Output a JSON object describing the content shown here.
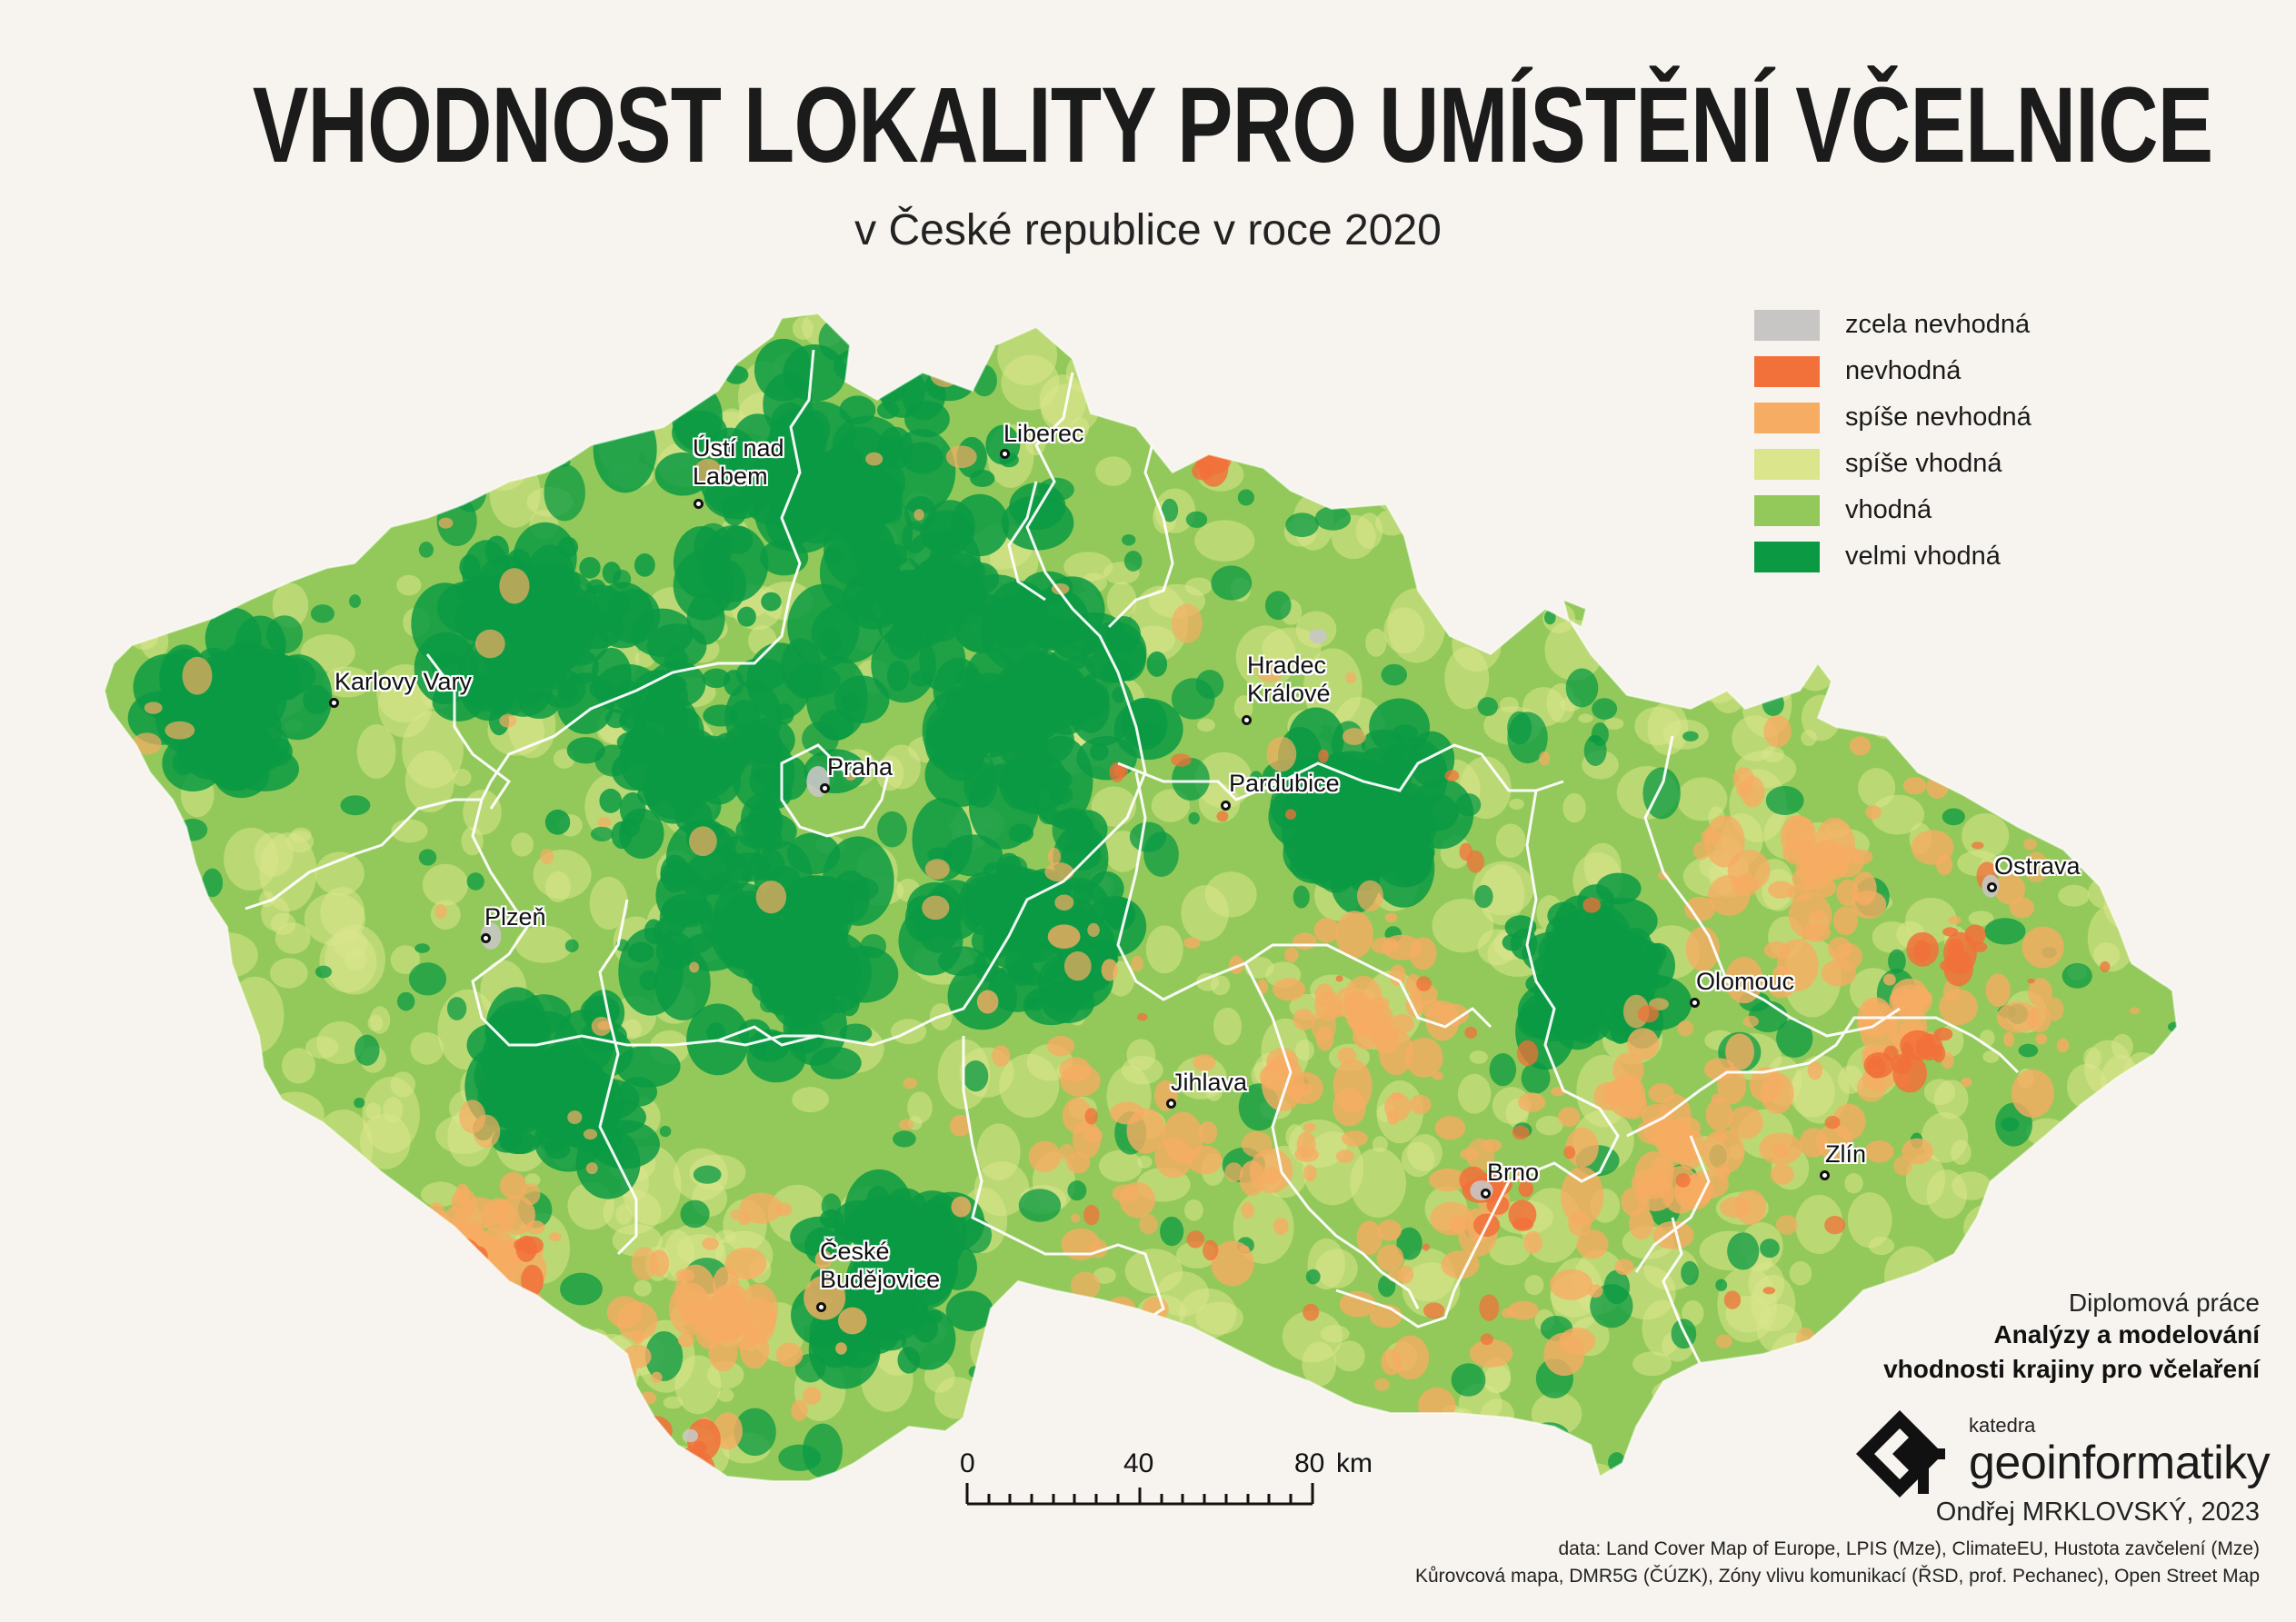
{
  "title": "VHODNOST LOKALITY PRO UMÍSTĚNÍ VČELNICE",
  "subtitle": "v České republice v roce 2020",
  "legend": [
    {
      "label": "zcela nevhodná",
      "color": "#c8c6c4"
    },
    {
      "label": "nevhodná",
      "color": "#f2703a"
    },
    {
      "label": "spíše nevhodná",
      "color": "#f6ad63"
    },
    {
      "label": "spíše vhodná",
      "color": "#dbe58c"
    },
    {
      "label": "vhodná",
      "color": "#93c95a"
    },
    {
      "label": "velmi vhodná",
      "color": "#0b9a43"
    }
  ],
  "cities": [
    {
      "name": "Ústí nad",
      "name2": "Labem"
    },
    {
      "name": "Liberec"
    },
    {
      "name": "Karlovy Vary"
    },
    {
      "name": "Hradec",
      "name2": "Králové"
    },
    {
      "name": "Praha"
    },
    {
      "name": "Pardubice"
    },
    {
      "name": "Plzeň"
    },
    {
      "name": "Ostrava"
    },
    {
      "name": "Olomouc"
    },
    {
      "name": "Jihlava"
    },
    {
      "name": "Zlín"
    },
    {
      "name": "Brno"
    },
    {
      "name": "České",
      "name2": "Budějovice"
    }
  ],
  "scale": {
    "labels": [
      "0",
      "40",
      "80"
    ],
    "unit": "km"
  },
  "credits": {
    "line1": "Diplomová práce",
    "line2": "Analýzy a modelování",
    "line3": "vhodnosti krajiny pro včelaření"
  },
  "logo": {
    "small": "katedra",
    "big": "geoinformatiky"
  },
  "author": "Ondřej MRKLOVSKÝ, 2023",
  "data_sources": {
    "line1": "data: Land Cover Map of Europe, LPIS (Mze), ClimateEU, Hustota zavčelení (Mze)",
    "line2": "Kůrovcová mapa, DMR5G (ČÚZK), Zóny vlivu komunikací (ŘSD, prof. Pechanec), Open Street Map"
  }
}
